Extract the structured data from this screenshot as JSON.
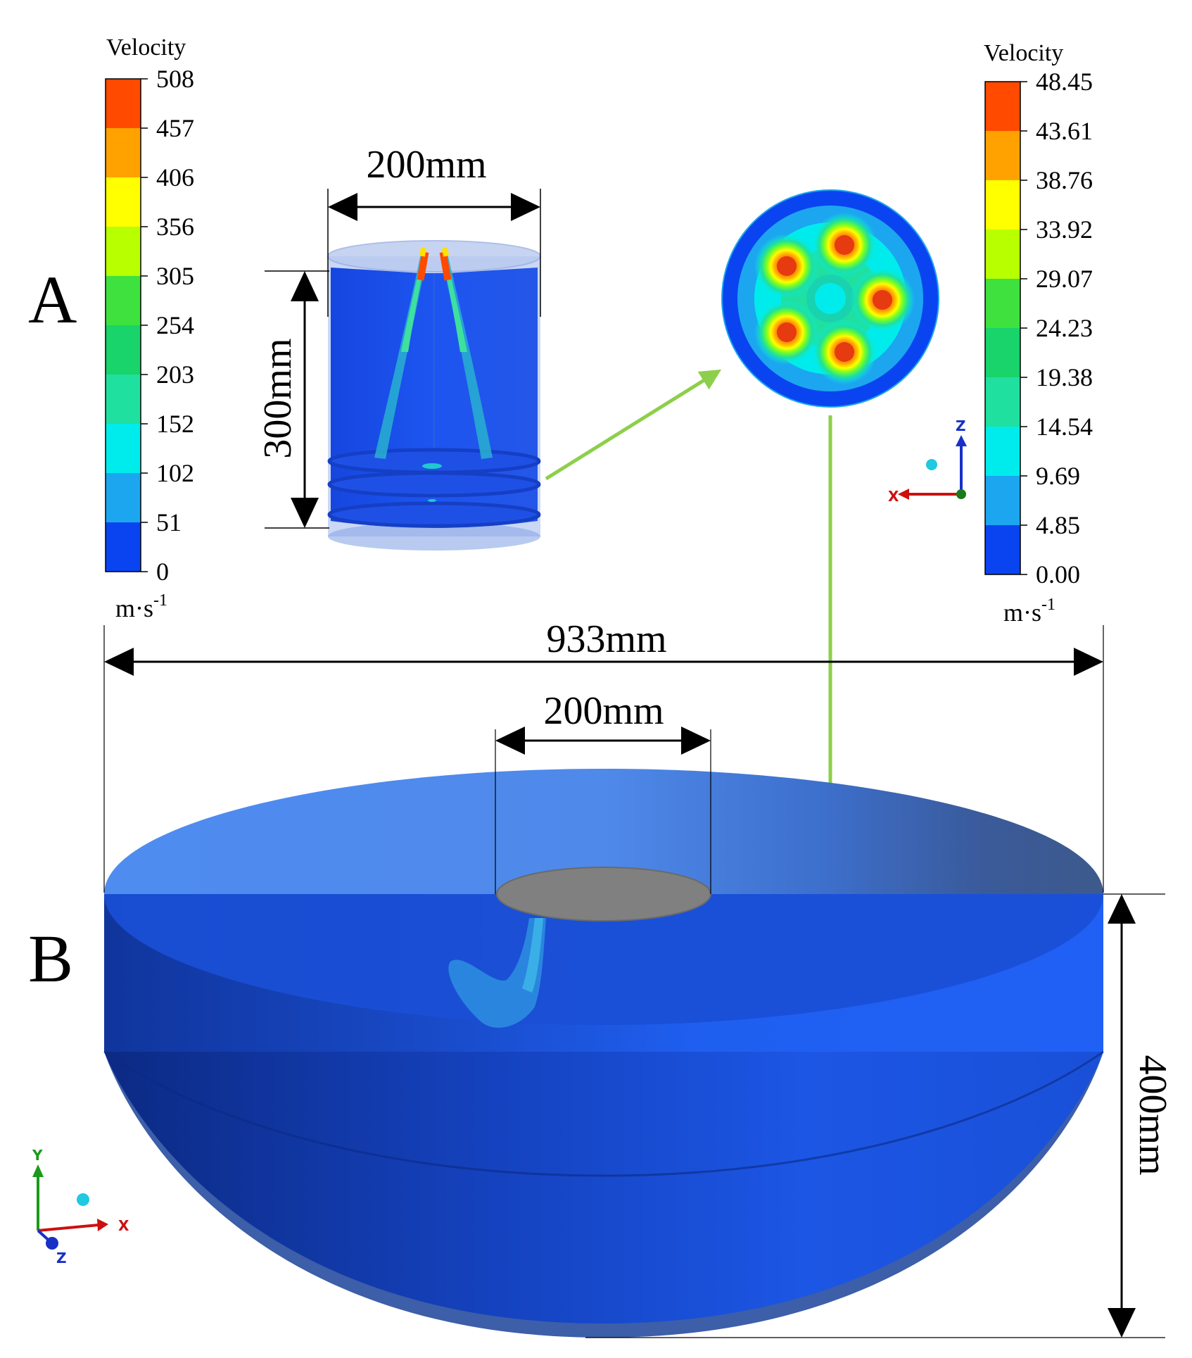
{
  "panel_labels": {
    "a": "A",
    "b": "B"
  },
  "legend_left": {
    "title": "Velocity",
    "ticks": [
      "508",
      "457",
      "406",
      "356",
      "305",
      "254",
      "203",
      "152",
      "102",
      "51",
      "0"
    ],
    "unit_main": "m·s",
    "unit_exp": "-1"
  },
  "legend_right": {
    "title": "Velocity",
    "ticks": [
      "48.45",
      "43.61",
      "38.76",
      "33.92",
      "29.07",
      "24.23",
      "19.38",
      "14.54",
      "9.69",
      "4.85",
      "0.00"
    ],
    "unit_main": "m·s",
    "unit_exp": "-1"
  },
  "colormap": [
    "#ff4a00",
    "#ffa200",
    "#ffff00",
    "#b8ff00",
    "#3fe13f",
    "#19d36b",
    "#20e0a0",
    "#00ecec",
    "#1ca6f0",
    "#0a44f0"
  ],
  "dimensions": {
    "cylinder_width": "200mm",
    "cylinder_height": "300mm",
    "tank_width": "933mm",
    "inlet_width": "200mm",
    "tank_height": "400mm"
  },
  "axis_labels": {
    "x": "X",
    "y": "Y",
    "z": "Z"
  },
  "colors": {
    "connector": "#8dcf4a",
    "tank_blue": "#1d52d8",
    "inlet_grey": "#808080"
  }
}
